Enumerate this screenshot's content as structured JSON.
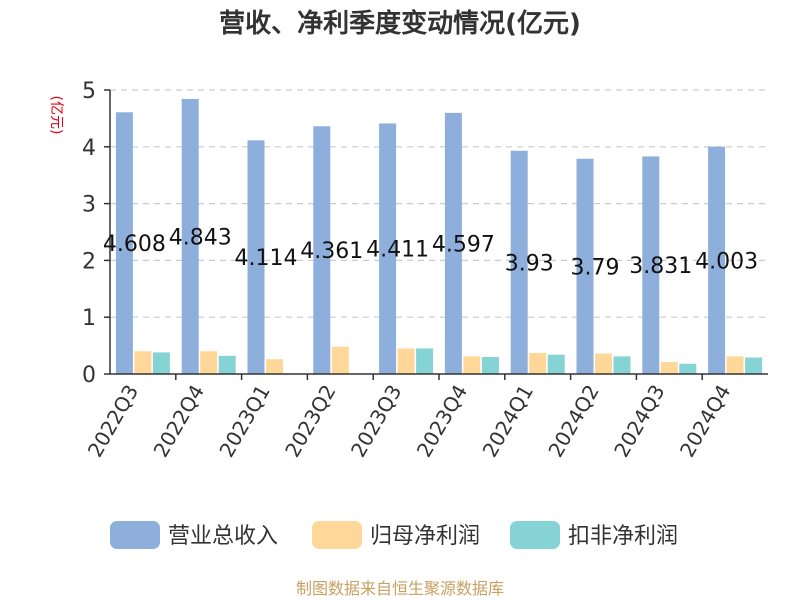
{
  "chart_data": {
    "type": "bar",
    "title": "营收、净利季度变动情况(亿元)",
    "unit_label": "(亿元)",
    "categories": [
      "2022Q3",
      "2022Q4",
      "2023Q1",
      "2023Q2",
      "2023Q3",
      "2023Q4",
      "2024Q1",
      "2024Q2",
      "2024Q3",
      "2024Q4"
    ],
    "series": [
      {
        "name": "营业总收入",
        "color": "#8eaedc",
        "values": [
          4.608,
          4.843,
          4.114,
          4.361,
          4.411,
          4.597,
          3.93,
          3.79,
          3.831,
          4.003
        ],
        "labels": [
          "4.608",
          "4.843",
          "4.114",
          "4.361",
          "4.411",
          "4.597",
          "3.93",
          "3.79",
          "3.831",
          "4.003"
        ]
      },
      {
        "name": "归母净利润",
        "color": "#ffd899",
        "values": [
          0.4,
          0.4,
          0.26,
          0.48,
          0.45,
          0.31,
          0.37,
          0.36,
          0.21,
          0.31
        ]
      },
      {
        "name": "扣非净利润",
        "color": "#86d3d6",
        "values": [
          0.38,
          0.32,
          0.0,
          0.0,
          0.45,
          0.3,
          0.34,
          0.31,
          0.18,
          0.29
        ]
      }
    ],
    "ylim": [
      0,
      5
    ],
    "yticks": [
      "0",
      "1",
      "2",
      "3",
      "4",
      "5"
    ],
    "grid": true,
    "legend_position": "bottom"
  },
  "source": "制图数据来自恒生聚源数据库"
}
